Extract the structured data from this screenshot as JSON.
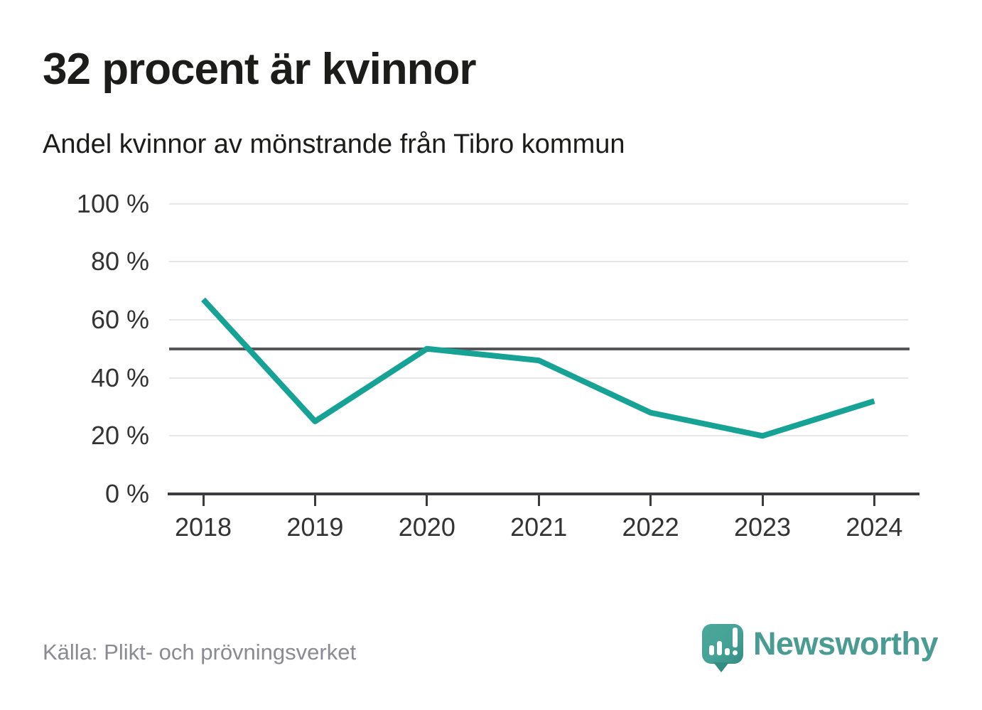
{
  "header": {
    "title": "32 procent är kvinnor",
    "subtitle": "Andel kvinnor av mönstrande från Tibro kommun"
  },
  "footer": {
    "source": "Källa: Plikt- och prövningsverket",
    "logo_text": "Newsworthy"
  },
  "chart_data": {
    "type": "line",
    "title": "32 procent är kvinnor",
    "subtitle": "Andel kvinnor av mönstrande från Tibro kommun",
    "categories": [
      "2018",
      "2019",
      "2020",
      "2021",
      "2022",
      "2023",
      "2024"
    ],
    "series": [
      {
        "name": "Andel kvinnor av mönstrande",
        "values": [
          67,
          25,
          50,
          46,
          28,
          20,
          32
        ]
      }
    ],
    "unit": "%",
    "ylim": [
      0,
      100
    ],
    "yticks": [
      0,
      20,
      40,
      60,
      80,
      100
    ],
    "ytick_suffix": " %",
    "reference_line": 50,
    "grid": true,
    "legend": "none",
    "colors": {
      "line": "#17a296",
      "gridline": "#e7e7e7",
      "reference_line": "#55565a",
      "axis": "#3b3b3f",
      "tick_label": "#333333",
      "title_text": "#1c1c1a",
      "source_text": "#8a8a91",
      "logo_teal": "#45a296",
      "logo_word": "#4a9c93"
    }
  }
}
